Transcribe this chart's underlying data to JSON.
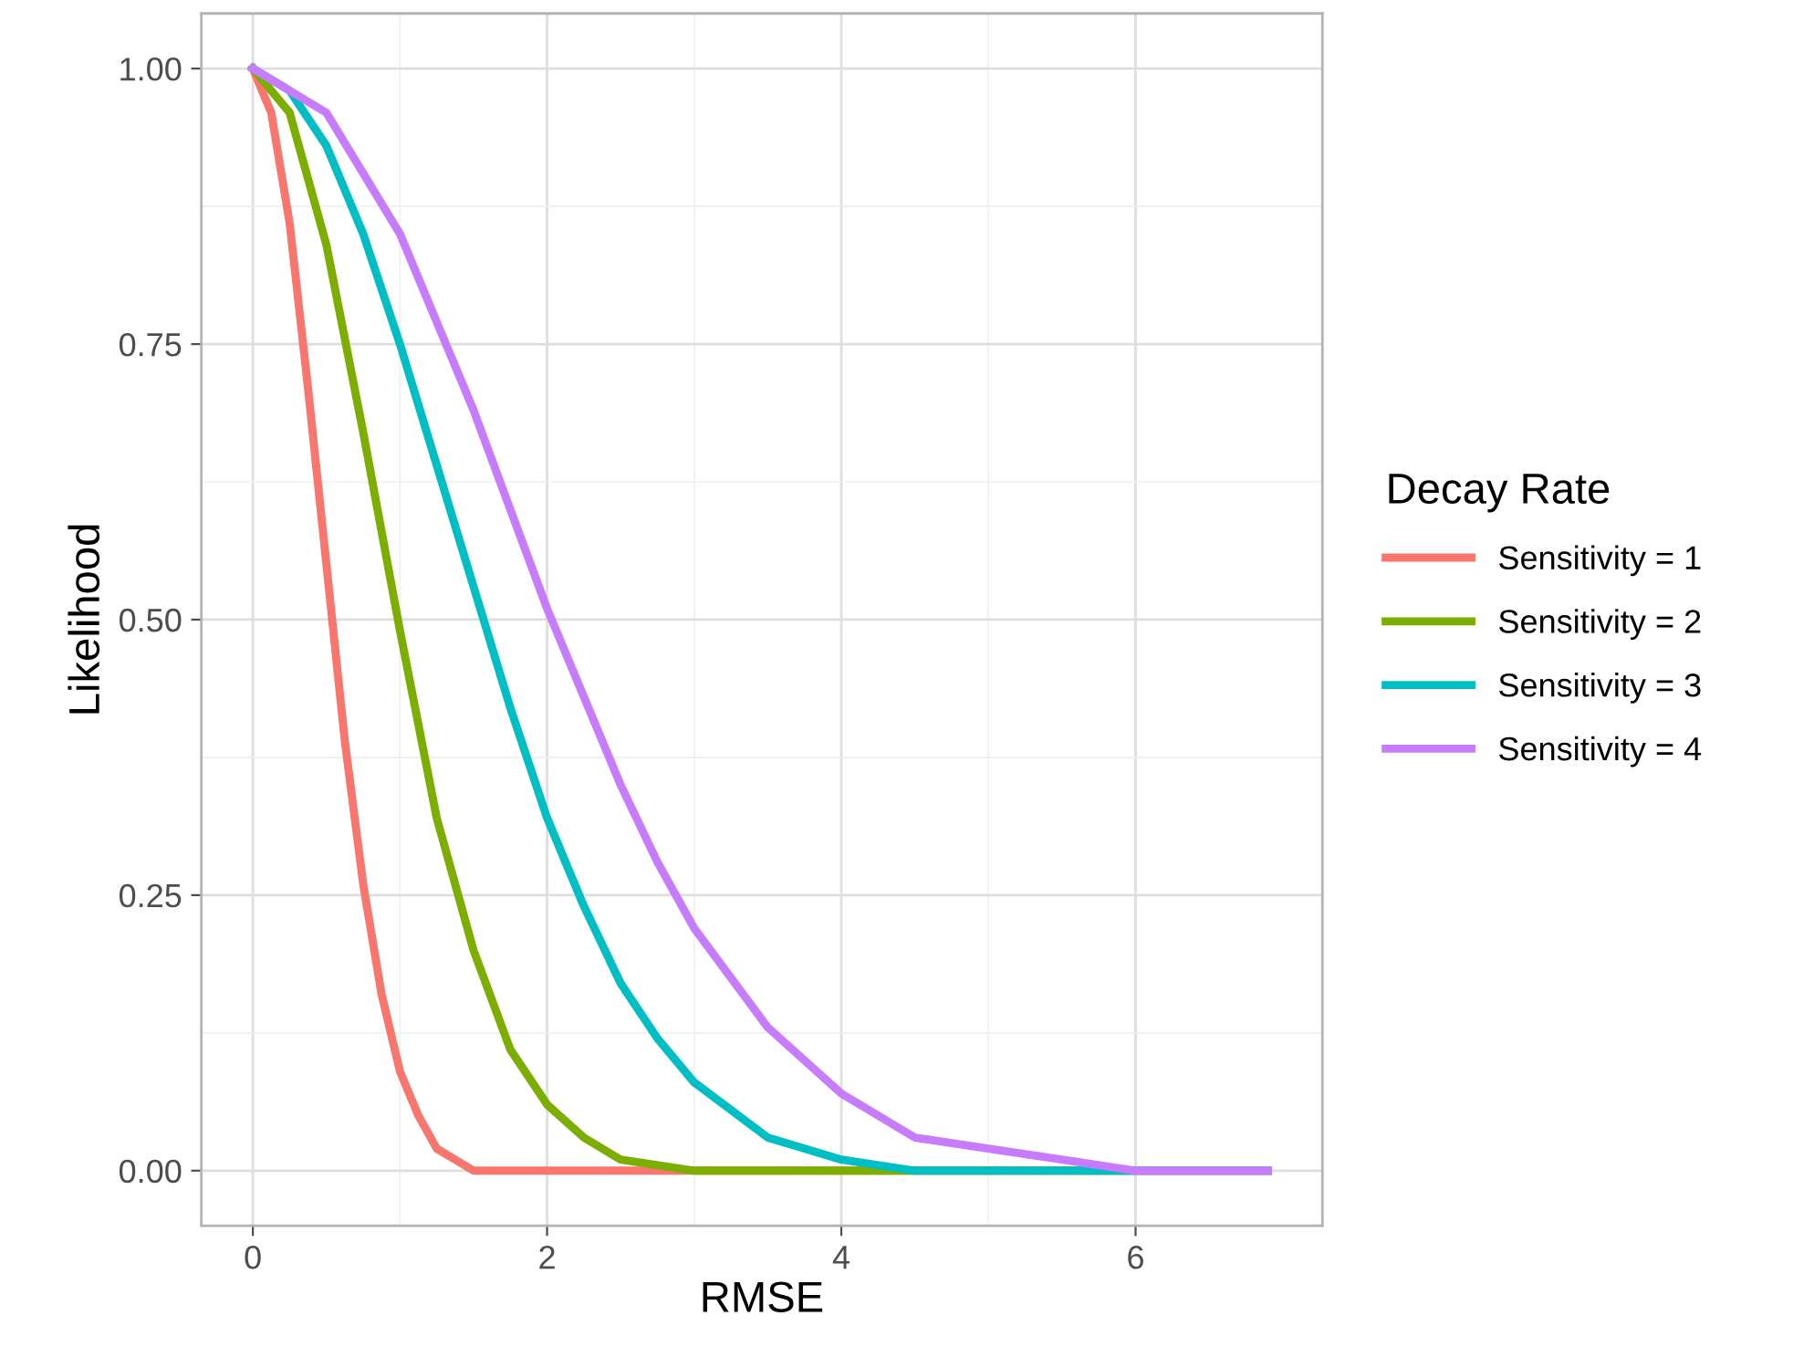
{
  "chart_data": {
    "type": "line",
    "xlabel": "RMSE",
    "ylabel": "Likelihood",
    "legend_title": "Decay Rate",
    "xlim": [
      -0.35,
      7.27
    ],
    "ylim": [
      -0.05,
      1.05
    ],
    "xticks": [
      0,
      2,
      4,
      6
    ],
    "yticks": [
      {
        "value": 0,
        "label": "0.00"
      },
      {
        "value": 0.25,
        "label": "0.25"
      },
      {
        "value": 0.5,
        "label": "0.50"
      },
      {
        "value": 0.75,
        "label": "0.75"
      },
      {
        "value": 1,
        "label": "1.00"
      }
    ],
    "grid": true,
    "legend": "right",
    "marker": "none",
    "line_style": "solid",
    "series": [
      {
        "name": "Sensitivity = 1",
        "color": "#f8766d",
        "x": [
          0,
          0.125,
          0.25,
          0.375,
          0.5,
          0.625,
          0.75,
          0.875,
          1,
          1.125,
          1.25,
          1.5,
          2,
          6.9
        ],
        "values": [
          1,
          0.96,
          0.86,
          0.71,
          0.55,
          0.39,
          0.26,
          0.16,
          0.09,
          0.05,
          0.02,
          0,
          0,
          0
        ]
      },
      {
        "name": "Sensitivity = 2",
        "color": "#7cae00",
        "x": [
          0,
          0.25,
          0.5,
          0.75,
          1,
          1.25,
          1.5,
          1.75,
          2,
          2.25,
          2.5,
          3,
          6.9
        ],
        "values": [
          1,
          0.96,
          0.84,
          0.67,
          0.49,
          0.32,
          0.2,
          0.11,
          0.06,
          0.03,
          0.01,
          0,
          0
        ]
      },
      {
        "name": "Sensitivity = 3",
        "color": "#00bfc4",
        "x": [
          0,
          0.25,
          0.5,
          0.75,
          1,
          1.25,
          1.5,
          1.75,
          2,
          2.25,
          2.5,
          2.75,
          3,
          3.5,
          4,
          4.5,
          6.9
        ],
        "values": [
          1,
          0.98,
          0.93,
          0.85,
          0.75,
          0.64,
          0.53,
          0.42,
          0.32,
          0.24,
          0.17,
          0.12,
          0.08,
          0.03,
          0.01,
          0,
          0
        ]
      },
      {
        "name": "Sensitivity = 4",
        "color": "#c77cff",
        "x": [
          0,
          0.5,
          1,
          1.25,
          1.5,
          1.75,
          2,
          2.25,
          2.5,
          2.75,
          3,
          3.5,
          4,
          4.5,
          5,
          5.5,
          6,
          6.9
        ],
        "values": [
          1,
          0.96,
          0.85,
          0.77,
          0.69,
          0.6,
          0.51,
          0.43,
          0.35,
          0.28,
          0.22,
          0.13,
          0.07,
          0.03,
          0.02,
          0.01,
          0,
          0
        ]
      }
    ]
  }
}
